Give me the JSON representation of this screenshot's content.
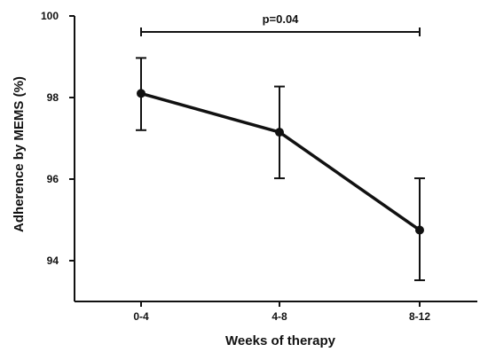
{
  "chart_data": {
    "type": "line",
    "title": "",
    "xlabel": "Weeks of therapy",
    "ylabel": "Adherence by MEMS (%)",
    "categories": [
      "0-4",
      "4-8",
      "8-12"
    ],
    "series": [
      {
        "values": [
          98.1,
          97.15,
          94.75
        ],
        "err_low": [
          97.2,
          96.02,
          93.52
        ],
        "err_high": [
          98.97,
          98.27,
          96.02
        ]
      }
    ],
    "ylim": [
      93.0,
      100.0
    ],
    "yticks": [
      94,
      96,
      98,
      100
    ],
    "grid": false,
    "annotation": {
      "text": "p=0.04",
      "from_category": "0-4",
      "to_category": "8-12"
    }
  }
}
